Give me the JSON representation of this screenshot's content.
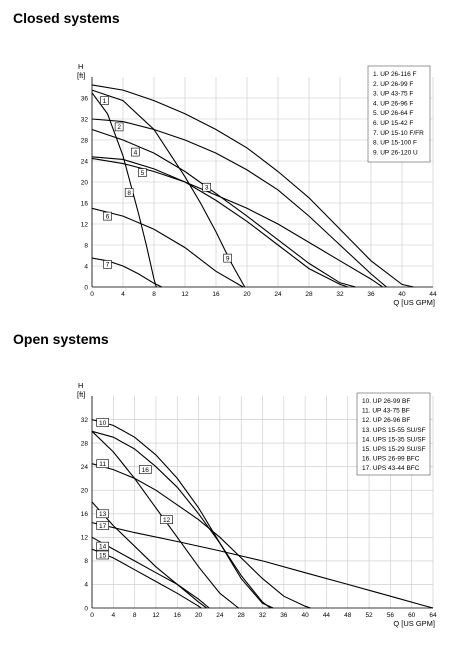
{
  "headings": {
    "closed": "Closed systems",
    "open": "Open systems"
  },
  "chart_data": [
    {
      "type": "line",
      "title": "Closed systems",
      "xlabel": "Q [US GPM]",
      "ylabel_top": "H",
      "ylabel_unit": "[ft]",
      "xlim": [
        0,
        44
      ],
      "ylim": [
        0,
        40
      ],
      "xticks": [
        0,
        4,
        8,
        12,
        16,
        20,
        24,
        28,
        32,
        36,
        40,
        44
      ],
      "yticks": [
        0,
        4,
        8,
        12,
        16,
        20,
        24,
        28,
        32,
        36
      ],
      "grid": true,
      "legend_position": "top-right",
      "legend": [
        "1. UP 26-116 F",
        "2. UP 26-99 F",
        "3. UP 43-75 F",
        "4. UP 26-96 F",
        "5. UP 26-64 F",
        "6. UP 15-42 F",
        "7. UP 15-10 F/FR",
        "8. UP 15-100 F",
        "9. UP 26-120 U"
      ],
      "series": [
        {
          "name": "1",
          "label_at": [
            1.6,
            35.5
          ],
          "x": [
            0,
            4,
            8,
            12,
            16,
            20,
            24,
            28,
            32,
            36,
            40,
            41.5
          ],
          "y": [
            38.5,
            37.5,
            35.5,
            33,
            30,
            26.5,
            22,
            17,
            11,
            5,
            0.5,
            0
          ]
        },
        {
          "name": "2",
          "label_at": [
            3.5,
            30.5
          ],
          "x": [
            0,
            4,
            8,
            12,
            16,
            20,
            24,
            28,
            32,
            36,
            38
          ],
          "y": [
            32,
            31.5,
            30,
            28,
            25.5,
            22.3,
            18.5,
            13.5,
            8,
            2.5,
            0
          ]
        },
        {
          "name": "3",
          "label_at": [
            14.8,
            19
          ],
          "x": [
            0,
            4,
            8,
            12,
            16,
            20,
            24,
            28,
            32,
            36,
            37.5
          ],
          "y": [
            24.5,
            23.5,
            22,
            20,
            17.5,
            15,
            12,
            8.5,
            5,
            1.5,
            0
          ]
        },
        {
          "name": "4",
          "label_at": [
            5.6,
            25.7
          ],
          "x": [
            0,
            4,
            8,
            12,
            16,
            20,
            24,
            28,
            32,
            34
          ],
          "y": [
            30,
            28,
            25.5,
            22,
            17.8,
            13.5,
            9,
            4.5,
            0.8,
            0
          ]
        },
        {
          "name": "5",
          "label_at": [
            6.5,
            21.8
          ],
          "x": [
            0,
            4,
            8,
            12,
            16,
            20,
            24,
            28,
            32,
            33
          ],
          "y": [
            24.8,
            24.3,
            22.5,
            20,
            16.5,
            12.5,
            8,
            3.5,
            0.5,
            0
          ]
        },
        {
          "name": "6",
          "label_at": [
            2,
            13.5
          ],
          "x": [
            0,
            4,
            8,
            12,
            16,
            19.5
          ],
          "y": [
            15,
            13.5,
            11,
            7.5,
            3,
            0
          ]
        },
        {
          "name": "7",
          "label_at": [
            2,
            4.3
          ],
          "x": [
            0,
            2,
            4,
            6,
            8,
            9
          ],
          "y": [
            5.5,
            5,
            4,
            2.5,
            0.7,
            0
          ]
        },
        {
          "name": "8",
          "label_at": [
            4.8,
            18
          ],
          "x": [
            0,
            2,
            4,
            6,
            7,
            8,
            8.3
          ],
          "y": [
            37,
            33,
            25,
            14,
            8,
            1.5,
            0
          ]
        },
        {
          "name": "9",
          "label_at": [
            17.5,
            5.5
          ],
          "x": [
            0,
            4,
            8,
            12,
            14,
            16,
            18,
            19.7
          ],
          "y": [
            37.5,
            35.5,
            30,
            21,
            16,
            10.5,
            4.5,
            0
          ]
        }
      ]
    },
    {
      "type": "line",
      "title": "Open systems",
      "xlabel": "Q [US GPM]",
      "ylabel_top": "H",
      "ylabel_unit": "[ft]",
      "xlim": [
        0,
        64
      ],
      "ylim": [
        0,
        36
      ],
      "xticks": [
        0,
        4,
        8,
        12,
        16,
        20,
        24,
        28,
        32,
        36,
        40,
        44,
        48,
        52,
        56,
        60,
        64
      ],
      "yticks": [
        0,
        4,
        8,
        12,
        16,
        20,
        24,
        28,
        32
      ],
      "grid": true,
      "legend_position": "top-right",
      "legend": [
        "10. UP 26-99 BF",
        "11. UP 43-75 BF",
        "12. UP 26-96 BF",
        "13. UPS 15-55 SU/SF",
        "14. UPS 15-35 SU/SF",
        "15. UPS 15-29 SU/SF",
        "16. UPS 26-99 BFC",
        "17. UPS 43-44 BFC"
      ],
      "series": [
        {
          "name": "10",
          "label_at": [
            2,
            31.5
          ],
          "x": [
            0,
            4,
            8,
            12,
            16,
            20,
            24,
            28,
            32,
            34
          ],
          "y": [
            32,
            31,
            29,
            26,
            22,
            17,
            11,
            5,
            0.8,
            0
          ]
        },
        {
          "name": "11",
          "label_at": [
            2,
            24.5
          ],
          "x": [
            0,
            4,
            8,
            12,
            16,
            20,
            24,
            28,
            32,
            36,
            40,
            41
          ],
          "y": [
            24.5,
            23.5,
            22,
            20,
            17.5,
            15,
            12,
            8.5,
            5,
            2,
            0.3,
            0
          ]
        },
        {
          "name": "12",
          "label_at": [
            14,
            15
          ],
          "x": [
            0,
            4,
            8,
            12,
            16,
            20,
            24,
            27.5
          ],
          "y": [
            30,
            26.5,
            22,
            17,
            12,
            7,
            2.5,
            0
          ]
        },
        {
          "name": "13",
          "label_at": [
            2,
            16
          ],
          "x": [
            0,
            4,
            8,
            12,
            16,
            20,
            21.5
          ],
          "y": [
            18,
            14,
            10.5,
            7,
            4,
            1,
            0
          ]
        },
        {
          "name": "14",
          "label_at": [
            2,
            10.5
          ],
          "x": [
            0,
            4,
            8,
            12,
            16,
            20,
            22
          ],
          "y": [
            12,
            10,
            8,
            6,
            4,
            1.5,
            0
          ]
        },
        {
          "name": "15",
          "label_at": [
            2,
            9
          ],
          "x": [
            0,
            4,
            8,
            12,
            16,
            20,
            20.5
          ],
          "y": [
            10,
            8.5,
            6.5,
            4.5,
            2.5,
            0.3,
            0
          ]
        },
        {
          "name": "16",
          "label_at": [
            10,
            23.5
          ],
          "x": [
            0,
            4,
            8,
            12,
            16,
            20,
            24,
            28,
            32,
            33.5
          ],
          "y": [
            30,
            29,
            27,
            24,
            20.5,
            16,
            11,
            5.5,
            1,
            0
          ]
        },
        {
          "name": "17",
          "label_at": [
            2,
            14
          ],
          "x": [
            0,
            8,
            16,
            24,
            32,
            40,
            48,
            56,
            62,
            64
          ],
          "y": [
            14.5,
            12.8,
            11.3,
            9.7,
            8,
            6,
            4,
            2,
            0.5,
            0
          ]
        }
      ]
    }
  ]
}
